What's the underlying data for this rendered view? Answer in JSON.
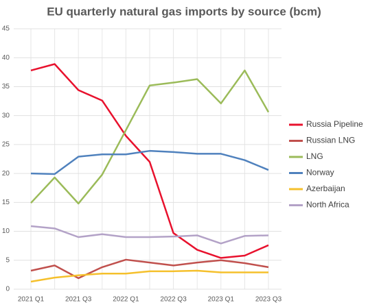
{
  "chart_data": {
    "type": "line",
    "title": "EU quarterly natural gas imports by source (bcm)",
    "categories": [
      "2021 Q1",
      null,
      "2021 Q3",
      null,
      "2022 Q1",
      null,
      "2022 Q3",
      null,
      "2023 Q1",
      null,
      "2023 Q3"
    ],
    "series": [
      {
        "name": "Russia Pipeline",
        "color": "#e8112d",
        "values": [
          37.8,
          38.9,
          34.4,
          32.6,
          26.5,
          22.0,
          9.7,
          6.8,
          5.4,
          5.8,
          7.6
        ]
      },
      {
        "name": "Russian LNG",
        "color": "#c0504d",
        "values": [
          3.2,
          4.1,
          1.9,
          3.8,
          5.1,
          4.6,
          4.1,
          4.6,
          5.0,
          4.5,
          3.8
        ]
      },
      {
        "name": "LNG",
        "color": "#9bbb59",
        "values": [
          14.9,
          19.3,
          14.8,
          19.8,
          27.5,
          35.2,
          35.7,
          36.3,
          32.1,
          37.8,
          30.6
        ]
      },
      {
        "name": "Norway",
        "color": "#4f81bd",
        "values": [
          20.0,
          19.9,
          22.9,
          23.3,
          23.3,
          23.9,
          23.7,
          23.4,
          23.4,
          22.3,
          20.6
        ]
      },
      {
        "name": "Azerbaijan",
        "color": "#f5c02c",
        "values": [
          1.3,
          2.0,
          2.4,
          2.7,
          2.7,
          3.1,
          3.1,
          3.2,
          2.9,
          2.9,
          2.9
        ]
      },
      {
        "name": "North Africa",
        "color": "#b3a2c7",
        "values": [
          10.9,
          10.5,
          9.0,
          9.5,
          9.0,
          9.0,
          9.1,
          9.3,
          7.9,
          9.2,
          9.3
        ]
      }
    ],
    "ylim": [
      0,
      45
    ],
    "yticks": [
      0,
      5,
      10,
      15,
      20,
      25,
      30,
      35,
      40,
      45
    ],
    "grid": true,
    "legend": "right"
  }
}
